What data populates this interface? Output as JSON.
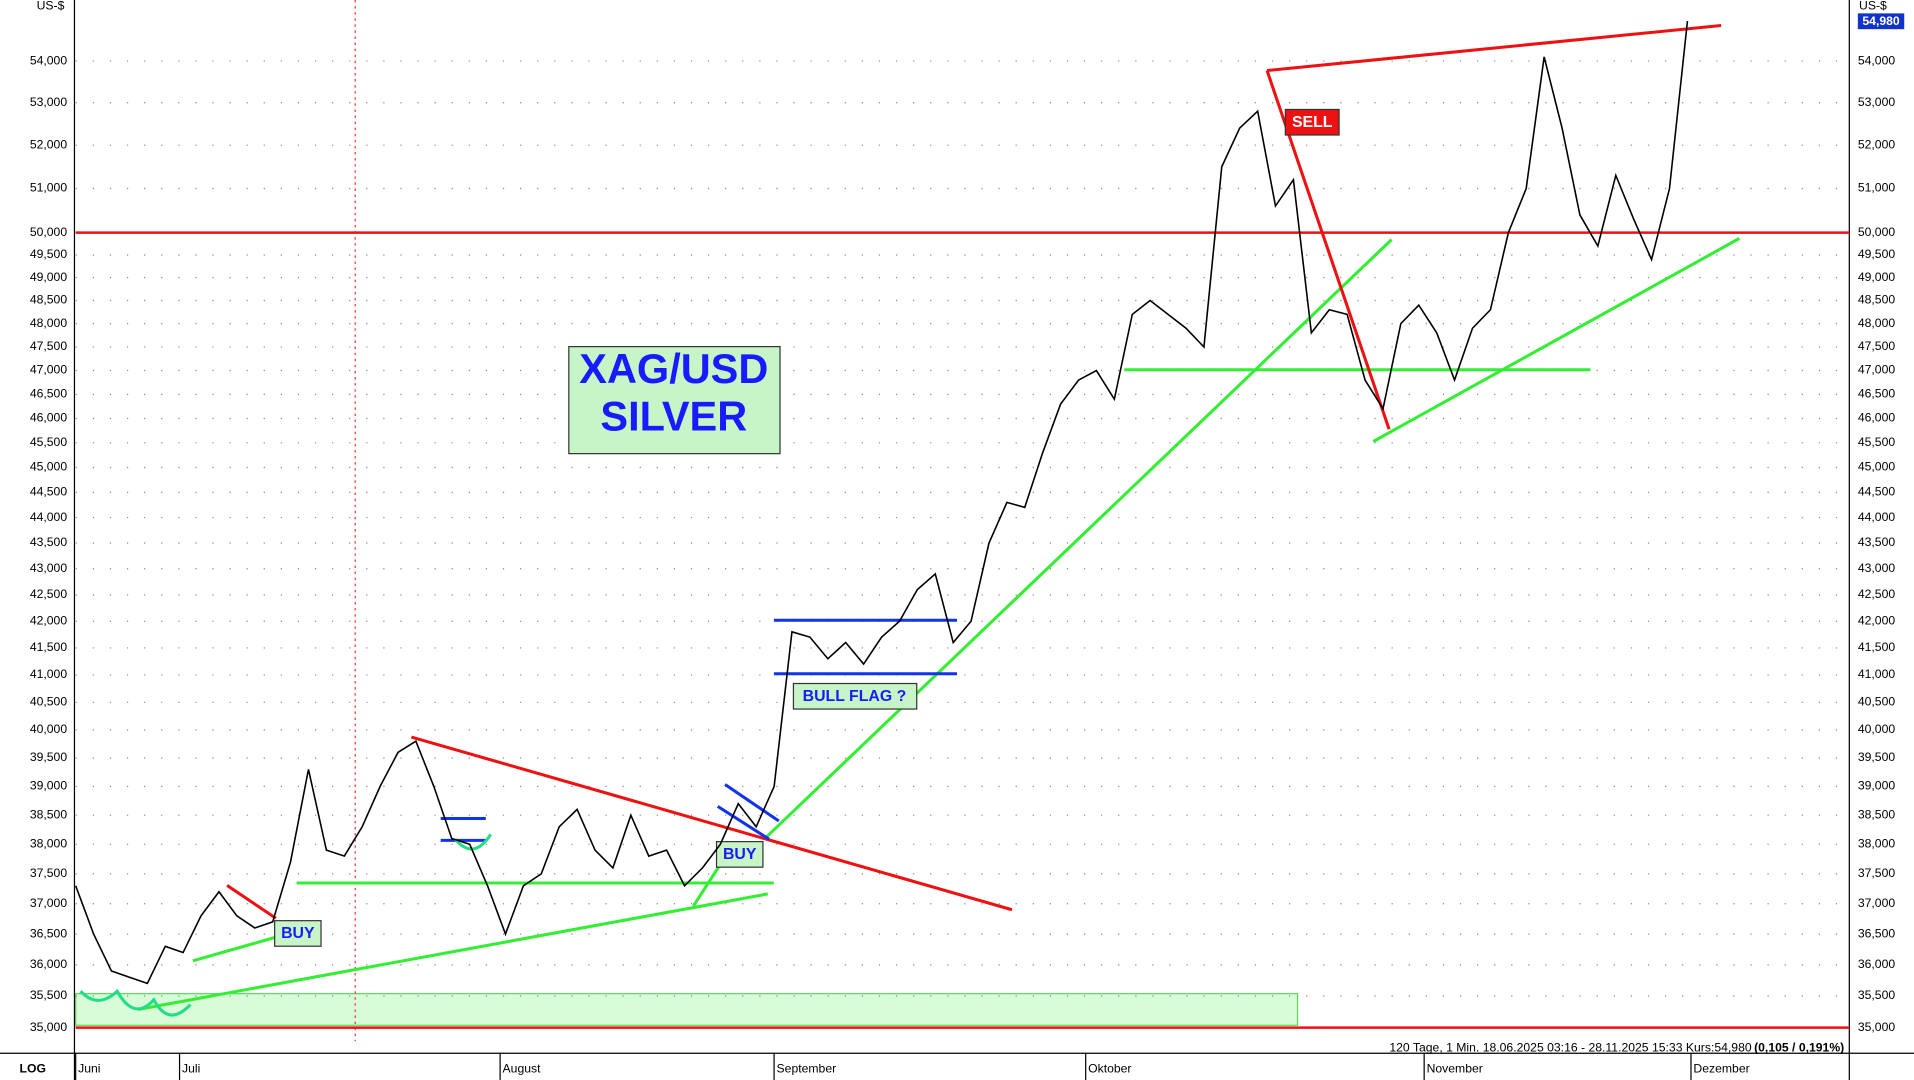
{
  "chart_data": {
    "type": "line",
    "title": "XAG/USD",
    "subtitle": "SILVER",
    "y_label": "US-$",
    "y2_label": "US-$",
    "scale_label": "LOG",
    "log_scale": true,
    "grid": true,
    "info": "120 Tage, 1 Min. 18.06.2025 03:16 - 28.11.2025 15:33 Kurs:54,980",
    "info_change": "(0,105 / 0,191%)",
    "last_label": "54,980",
    "annotations": [
      "BUY",
      "BUY",
      "SELL",
      "BULL FLAG ?"
    ],
    "reference_lines": [
      50000,
      35000
    ],
    "reference_color": "#ee1111",
    "xlim": [
      0,
      98.7
    ],
    "xticks": [
      {
        "value": 0,
        "label": "Juni"
      },
      {
        "value": 5.8,
        "label": "Juli"
      },
      {
        "value": 23.7,
        "label": "August"
      },
      {
        "value": 39,
        "label": "September"
      },
      {
        "value": 56.4,
        "label": "Oktober"
      },
      {
        "value": 75.3,
        "label": "November"
      },
      {
        "value": 90.2,
        "label": "Dezember"
      }
    ],
    "ylim": [
      34600,
      55500
    ],
    "yticks": [
      {
        "value": 35000,
        "label": "35,000"
      },
      {
        "value": 35500,
        "label": "35,500"
      },
      {
        "value": 36000,
        "label": "36,000"
      },
      {
        "value": 36500,
        "label": "36,500"
      },
      {
        "value": 37000,
        "label": "37,000"
      },
      {
        "value": 37500,
        "label": "37,500"
      },
      {
        "value": 38000,
        "label": "38,000"
      },
      {
        "value": 38500,
        "label": "38,500"
      },
      {
        "value": 39000,
        "label": "39,000"
      },
      {
        "value": 39500,
        "label": "39,500"
      },
      {
        "value": 40000,
        "label": "40,000"
      },
      {
        "value": 40500,
        "label": "40,500"
      },
      {
        "value": 41000,
        "label": "41,000"
      },
      {
        "value": 41500,
        "label": "41,500"
      },
      {
        "value": 42000,
        "label": "42,000"
      },
      {
        "value": 42500,
        "label": "42,500"
      },
      {
        "value": 43000,
        "label": "43,000"
      },
      {
        "value": 43500,
        "label": "43,500"
      },
      {
        "value": 44000,
        "label": "44,000"
      },
      {
        "value": 44500,
        "label": "44,500"
      },
      {
        "value": 45000,
        "label": "45,000"
      },
      {
        "value": 45500,
        "label": "45,500"
      },
      {
        "value": 46000,
        "label": "46,000"
      },
      {
        "value": 46500,
        "label": "46,500"
      },
      {
        "value": 47000,
        "label": "47,000"
      },
      {
        "value": 47500,
        "label": "47,500"
      },
      {
        "value": 48000,
        "label": "48,000"
      },
      {
        "value": 48500,
        "label": "48,500"
      },
      {
        "value": 49000,
        "label": "49,000"
      },
      {
        "value": 49500,
        "label": "49,500"
      },
      {
        "value": 50000,
        "label": "50,000"
      },
      {
        "value": 51000,
        "label": "51,000"
      },
      {
        "value": 52000,
        "label": "52,000"
      },
      {
        "value": 53000,
        "label": "53,000"
      },
      {
        "value": 54000,
        "label": "54,000"
      }
    ],
    "series": [
      {
        "name": "XAG/USD",
        "color": "#000000",
        "values": [
          37300,
          36500,
          35900,
          35800,
          35700,
          36300,
          36200,
          36800,
          37200,
          36800,
          36600,
          36700,
          37700,
          39300,
          37900,
          37800,
          38300,
          39000,
          39600,
          39800,
          39000,
          38100,
          38000,
          37300,
          36500,
          37300,
          37500,
          38300,
          38600,
          37900,
          37600,
          38500,
          37800,
          37900,
          37300,
          37600,
          38000,
          38700,
          38300,
          39000,
          41800,
          41700,
          41300,
          41600,
          41200,
          41700,
          42000,
          42600,
          42900,
          41600,
          42000,
          43500,
          44300,
          44200,
          45300,
          46300,
          46800,
          47000,
          46400,
          48200,
          48500,
          48200,
          47900,
          47500,
          51500,
          52400,
          52800,
          50600,
          51200,
          47800,
          48300,
          48200,
          46800,
          46200,
          48000,
          48400,
          47800,
          46800,
          47900,
          48300,
          50000,
          51000,
          54100,
          52400,
          50400,
          49700,
          51300,
          50300,
          49400,
          51000,
          54980
        ]
      }
    ]
  }
}
